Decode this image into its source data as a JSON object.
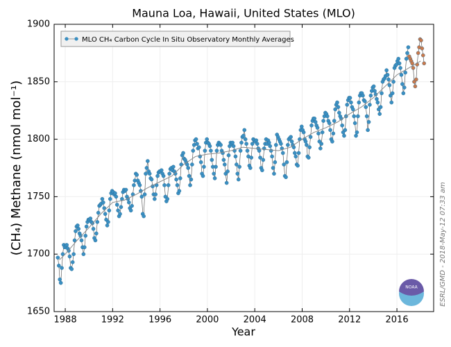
{
  "chart_data": {
    "type": "scatter",
    "title": "Mauna Loa, Hawaii, United States (MLO)",
    "x_label": "Year",
    "y_label": "(CH₄) Methane (nmol mol⁻¹)",
    "side_note": "ESRL/GMD - 2018-May-12 07:33 am",
    "logo_text": "NOAA",
    "legend": "upper left",
    "grid": true,
    "xlim": [
      1987.06,
      2019.1
    ],
    "ylim": [
      1650,
      1900
    ],
    "xticks": [
      1988,
      1992,
      1996,
      2000,
      2004,
      2008,
      2012,
      2016
    ],
    "yticks": [
      1650,
      1700,
      1750,
      1800,
      1850,
      1900
    ],
    "series": [
      {
        "name": "MLO CH₄ Carbon Cycle In Situ Observatory Monthly Averages",
        "color": "#3a8fc2",
        "mode": "markers+line",
        "x": [
          1987.375,
          1987.458,
          1987.542,
          1987.625,
          1987.708,
          1987.792,
          1987.875,
          1987.958,
          1988.042,
          1988.125,
          1988.208,
          1988.292,
          1988.375,
          1988.458,
          1988.542,
          1988.625,
          1988.708,
          1988.792,
          1988.875,
          1988.958,
          1989.042,
          1989.125,
          1989.208,
          1989.292,
          1989.375,
          1989.458,
          1989.542,
          1989.625,
          1989.708,
          1989.792,
          1989.875,
          1989.958,
          1990.042,
          1990.125,
          1990.208,
          1990.292,
          1990.375,
          1990.458,
          1990.542,
          1990.625,
          1990.708,
          1990.792,
          1990.875,
          1990.958,
          1991.042,
          1991.125,
          1991.208,
          1991.292,
          1991.375,
          1991.458,
          1991.542,
          1991.625,
          1991.708,
          1991.792,
          1991.875,
          1991.958,
          1992.042,
          1992.125,
          1992.208,
          1992.292,
          1992.375,
          1992.458,
          1992.542,
          1992.625,
          1992.708,
          1992.792,
          1992.875,
          1992.958,
          1993.042,
          1993.125,
          1993.208,
          1993.292,
          1993.375,
          1993.458,
          1993.542,
          1993.625,
          1993.708,
          1993.792,
          1993.875,
          1993.958,
          1994.042,
          1994.125,
          1994.208,
          1994.292,
          1994.375,
          1994.458,
          1994.542,
          1994.625,
          1994.708,
          1994.792,
          1994.875,
          1994.958,
          1995.042,
          1995.125,
          1995.208,
          1995.292,
          1995.375,
          1995.458,
          1995.542,
          1995.625,
          1995.708,
          1995.792,
          1995.875,
          1995.958,
          1996.042,
          1996.125,
          1996.208,
          1996.292,
          1996.375,
          1996.458,
          1996.542,
          1996.625,
          1996.708,
          1996.792,
          1996.875,
          1996.958,
          1997.042,
          1997.125,
          1997.208,
          1997.292,
          1997.375,
          1997.458,
          1997.542,
          1997.625,
          1997.708,
          1997.792,
          1997.875,
          1997.958,
          1998.042,
          1998.125,
          1998.208,
          1998.292,
          1998.375,
          1998.458,
          1998.542,
          1998.625,
          1998.708,
          1998.792,
          1998.875,
          1998.958,
          1999.042,
          1999.125,
          1999.208,
          1999.292,
          1999.375,
          1999.458,
          1999.542,
          1999.625,
          1999.708,
          1999.792,
          1999.875,
          1999.958,
          2000.042,
          2000.125,
          2000.208,
          2000.292,
          2000.375,
          2000.458,
          2000.542,
          2000.625,
          2000.708,
          2000.792,
          2000.875,
          2000.958,
          2001.042,
          2001.125,
          2001.208,
          2001.292,
          2001.375,
          2001.458,
          2001.542,
          2001.625,
          2001.708,
          2001.792,
          2001.875,
          2001.958,
          2002.042,
          2002.125,
          2002.208,
          2002.292,
          2002.375,
          2002.458,
          2002.542,
          2002.625,
          2002.708,
          2002.792,
          2002.875,
          2002.958,
          2003.042,
          2003.125,
          2003.208,
          2003.292,
          2003.375,
          2003.458,
          2003.542,
          2003.625,
          2003.708,
          2003.792,
          2003.875,
          2003.958,
          2004.042,
          2004.125,
          2004.208,
          2004.292,
          2004.375,
          2004.458,
          2004.542,
          2004.625,
          2004.708,
          2004.792,
          2004.875,
          2004.958,
          2005.042,
          2005.125,
          2005.208,
          2005.292,
          2005.375,
          2005.458,
          2005.542,
          2005.625,
          2005.708,
          2005.792,
          2005.875,
          2005.958,
          2006.042,
          2006.125,
          2006.208,
          2006.292,
          2006.375,
          2006.458,
          2006.542,
          2006.625,
          2006.708,
          2006.792,
          2006.875,
          2006.958,
          2007.042,
          2007.125,
          2007.208,
          2007.292,
          2007.375,
          2007.458,
          2007.542,
          2007.625,
          2007.708,
          2007.792,
          2007.875,
          2007.958,
          2008.042,
          2008.125,
          2008.208,
          2008.292,
          2008.375,
          2008.458,
          2008.542,
          2008.625,
          2008.708,
          2008.792,
          2008.875,
          2008.958,
          2009.042,
          2009.125,
          2009.208,
          2009.292,
          2009.375,
          2009.458,
          2009.542,
          2009.625,
          2009.708,
          2009.792,
          2009.875,
          2009.958,
          2010.042,
          2010.125,
          2010.208,
          2010.292,
          2010.375,
          2010.458,
          2010.542,
          2010.625,
          2010.708,
          2010.792,
          2010.875,
          2010.958,
          2011.042,
          2011.125,
          2011.208,
          2011.292,
          2011.375,
          2011.458,
          2011.542,
          2011.625,
          2011.708,
          2011.792,
          2011.875,
          2011.958,
          2012.042,
          2012.125,
          2012.208,
          2012.292,
          2012.375,
          2012.458,
          2012.542,
          2012.625,
          2012.708,
          2012.792,
          2012.875,
          2012.958,
          2013.042,
          2013.125,
          2013.208,
          2013.292,
          2013.375,
          2013.458,
          2013.542,
          2013.625,
          2013.708,
          2013.792,
          2013.875,
          2013.958,
          2014.042,
          2014.125,
          2014.208,
          2014.292,
          2014.375,
          2014.458,
          2014.542,
          2014.625,
          2014.708,
          2014.792,
          2014.875,
          2014.958,
          2015.042,
          2015.125,
          2015.208,
          2015.292,
          2015.375,
          2015.458,
          2015.542,
          2015.625,
          2015.708,
          2015.792,
          2015.875,
          2015.958,
          2016.042,
          2016.125,
          2016.208,
          2016.292,
          2016.375,
          2016.458,
          2016.542,
          2016.625,
          2016.708,
          2016.792,
          2016.875,
          2016.958
        ],
        "values": [
          1697,
          1690,
          1678,
          1675,
          1688,
          1700,
          1708,
          1706,
          1707,
          1708,
          1705,
          1703,
          1698,
          1688,
          1687,
          1693,
          1700,
          1712,
          1720,
          1724,
          1725,
          1722,
          1718,
          1716,
          1712,
          1706,
          1700,
          1706,
          1716,
          1724,
          1728,
          1730,
          1730,
          1731,
          1728,
          1727,
          1722,
          1714,
          1712,
          1718,
          1728,
          1736,
          1742,
          1743,
          1744,
          1748,
          1745,
          1740,
          1735,
          1730,
          1725,
          1728,
          1738,
          1748,
          1753,
          1755,
          1754,
          1752,
          1753,
          1750,
          1743,
          1738,
          1733,
          1735,
          1741,
          1748,
          1754,
          1756,
          1755,
          1756,
          1750,
          1748,
          1745,
          1740,
          1738,
          1742,
          1752,
          1760,
          1764,
          1770,
          1769,
          1764,
          1762,
          1760,
          1755,
          1750,
          1735,
          1733,
          1752,
          1770,
          1775,
          1781,
          1772,
          1770,
          1766,
          1765,
          1759,
          1752,
          1748,
          1752,
          1760,
          1768,
          1771,
          1772,
          1772,
          1773,
          1770,
          1768,
          1760,
          1750,
          1746,
          1748,
          1760,
          1770,
          1774,
          1775,
          1773,
          1776,
          1772,
          1770,
          1765,
          1760,
          1753,
          1755,
          1766,
          1778,
          1786,
          1788,
          1783,
          1782,
          1780,
          1778,
          1775,
          1768,
          1760,
          1765,
          1778,
          1790,
          1795,
          1799,
          1800,
          1796,
          1792,
          1793,
          1785,
          1780,
          1770,
          1768,
          1776,
          1790,
          1797,
          1800,
          1797,
          1796,
          1794,
          1790,
          1782,
          1776,
          1770,
          1766,
          1776,
          1790,
          1795,
          1797,
          1796,
          1795,
          1790,
          1788,
          1782,
          1778,
          1770,
          1762,
          1772,
          1786,
          1794,
          1797,
          1796,
          1797,
          1794,
          1790,
          1785,
          1778,
          1770,
          1765,
          1776,
          1790,
          1797,
          1802,
          1803,
          1808,
          1800,
          1796,
          1790,
          1785,
          1777,
          1775,
          1784,
          1796,
          1800,
          1799,
          1798,
          1799,
          1796,
          1792,
          1790,
          1784,
          1775,
          1773,
          1782,
          1792,
          1796,
          1800,
          1796,
          1799,
          1797,
          1794,
          1790,
          1785,
          1775,
          1770,
          1780,
          1795,
          1804,
          1802,
          1800,
          1798,
          1796,
          1792,
          1788,
          1778,
          1768,
          1767,
          1780,
          1795,
          1800,
          1801,
          1802,
          1798,
          1795,
          1793,
          1788,
          1785,
          1778,
          1777,
          1788,
          1800,
          1808,
          1811,
          1808,
          1806,
          1800,
          1798,
          1795,
          1785,
          1784,
          1793,
          1802,
          1812,
          1816,
          1818,
          1818,
          1815,
          1812,
          1810,
          1805,
          1798,
          1792,
          1796,
          1806,
          1816,
          1820,
          1823,
          1822,
          1820,
          1816,
          1814,
          1808,
          1800,
          1798,
          1805,
          1816,
          1826,
          1830,
          1832,
          1828,
          1823,
          1820,
          1818,
          1812,
          1806,
          1803,
          1808,
          1820,
          1830,
          1834,
          1836,
          1836,
          1832,
          1828,
          1826,
          1820,
          1814,
          1803,
          1806,
          1820,
          1832,
          1838,
          1840,
          1840,
          1838,
          1834,
          1833,
          1828,
          1820,
          1808,
          1815,
          1830,
          1838,
          1842,
          1845,
          1846,
          1842,
          1839,
          1835,
          1832,
          1826,
          1822,
          1828,
          1840,
          1850,
          1852,
          1853,
          1855,
          1860,
          1856,
          1852,
          1847,
          1838,
          1832,
          1840,
          1850,
          1862,
          1864,
          1865,
          1868,
          1870,
          1866,
          1862,
          1856,
          1848,
          1840,
          1845,
          1858,
          1870,
          1875,
          1880
        ]
      },
      {
        "color": "#c9794c",
        "mode": "markers+line",
        "x": [
          2017.042,
          2017.125,
          2017.208,
          2017.292,
          2017.375,
          2017.458,
          2017.542,
          2017.625,
          2017.708,
          2017.792,
          2017.875,
          2017.958,
          2018.042,
          2018.125,
          2018.208,
          2018.292
        ],
        "values": [
          1872,
          1870,
          1868,
          1866,
          1862,
          1850,
          1846,
          1852,
          1865,
          1875,
          1880,
          1887,
          1886,
          1879,
          1873,
          1866
        ]
      },
      {
        "color": "#888888",
        "mode": "line",
        "x": [
          1987.5,
          1988,
          1989,
          1990,
          1991,
          1992,
          1993,
          1994,
          1995,
          1996,
          1997,
          1998,
          1999,
          2000,
          2001,
          2002,
          2003,
          2004,
          2005,
          2006,
          2007,
          2008,
          2009,
          2010,
          2011,
          2012,
          2013,
          2014,
          2015,
          2016,
          2017,
          2018
        ],
        "values": [
          1695,
          1700,
          1712,
          1723,
          1735,
          1745,
          1747,
          1752,
          1758,
          1763,
          1768,
          1778,
          1785,
          1787,
          1788,
          1790,
          1793,
          1792,
          1791,
          1790,
          1793,
          1800,
          1806,
          1810,
          1815,
          1822,
          1828,
          1836,
          1846,
          1856,
          1862,
          1868
        ]
      }
    ]
  }
}
